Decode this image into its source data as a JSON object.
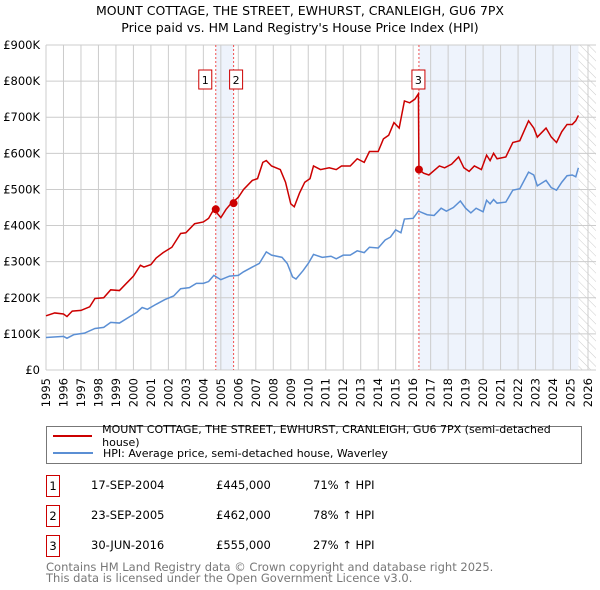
{
  "chart_data": {
    "type": "line",
    "title": "MOUNT COTTAGE, THE STREET, EWHURST, CRANLEIGH, GU6 7PX",
    "subtitle": "Price paid vs. HM Land Registry's House Price Index (HPI)",
    "xlim": [
      1995,
      2026
    ],
    "ylim": [
      0,
      900000
    ],
    "x_ticks": [
      "1995",
      "1996",
      "1997",
      "1998",
      "1999",
      "2000",
      "2001",
      "2002",
      "2003",
      "2004",
      "2005",
      "2006",
      "2007",
      "2008",
      "2009",
      "2010",
      "2011",
      "2012",
      "2013",
      "2014",
      "2015",
      "2016",
      "2017",
      "2018",
      "2019",
      "2020",
      "2021",
      "2022",
      "2023",
      "2024",
      "2025",
      "2026"
    ],
    "y_ticks": [
      {
        "v": 0,
        "l": "£0"
      },
      {
        "v": 100000,
        "l": "£100K"
      },
      {
        "v": 200000,
        "l": "£200K"
      },
      {
        "v": 300000,
        "l": "£300K"
      },
      {
        "v": 400000,
        "l": "£400K"
      },
      {
        "v": 500000,
        "l": "£500K"
      },
      {
        "v": 600000,
        "l": "£600K"
      },
      {
        "v": 700000,
        "l": "£700K"
      },
      {
        "v": 800000,
        "l": "£800K"
      },
      {
        "v": 900000,
        "l": "£900K"
      }
    ],
    "grid": true,
    "series": [
      {
        "name": "MOUNT COTTAGE, THE STREET, EWHURST, CRANLEIGH, GU6 7PX (semi-detached house)",
        "color": "#cc0000",
        "points": [
          [
            1995,
            150
          ],
          [
            1995.5,
            158
          ],
          [
            1996,
            155
          ],
          [
            1996.2,
            148
          ],
          [
            1996.5,
            163
          ],
          [
            1997,
            165
          ],
          [
            1997.5,
            175
          ],
          [
            1997.8,
            198
          ],
          [
            1998.3,
            200
          ],
          [
            1998.7,
            222
          ],
          [
            1999.2,
            220
          ],
          [
            1999.6,
            240
          ],
          [
            2000,
            260
          ],
          [
            2000.4,
            290
          ],
          [
            2000.6,
            285
          ],
          [
            2001,
            292
          ],
          [
            2001.3,
            310
          ],
          [
            2001.7,
            325
          ],
          [
            2002.2,
            340
          ],
          [
            2002.7,
            378
          ],
          [
            2003,
            380
          ],
          [
            2003.5,
            405
          ],
          [
            2004,
            410
          ],
          [
            2004.3,
            420
          ],
          [
            2004.6,
            445
          ],
          [
            2005,
            422
          ],
          [
            2005.3,
            445
          ],
          [
            2005.6,
            462
          ],
          [
            2006,
            478
          ],
          [
            2006.3,
            500
          ],
          [
            2006.8,
            525
          ],
          [
            2007.1,
            530
          ],
          [
            2007.4,
            575
          ],
          [
            2007.6,
            580
          ],
          [
            2007.9,
            565
          ],
          [
            2008.4,
            555
          ],
          [
            2008.7,
            520
          ],
          [
            2009,
            460
          ],
          [
            2009.2,
            452
          ],
          [
            2009.5,
            490
          ],
          [
            2009.8,
            520
          ],
          [
            2010.1,
            530
          ],
          [
            2010.3,
            565
          ],
          [
            2010.7,
            555
          ],
          [
            2011.2,
            560
          ],
          [
            2011.6,
            555
          ],
          [
            2011.9,
            565
          ],
          [
            2012.4,
            565
          ],
          [
            2012.8,
            585
          ],
          [
            2013.2,
            575
          ],
          [
            2013.5,
            605
          ],
          [
            2014,
            605
          ],
          [
            2014.3,
            640
          ],
          [
            2014.6,
            650
          ],
          [
            2014.9,
            685
          ],
          [
            2015.2,
            670
          ],
          [
            2015.5,
            745
          ],
          [
            2015.8,
            740
          ],
          [
            2016.1,
            750
          ],
          [
            2016.3,
            765
          ],
          [
            2016.33,
            555
          ],
          [
            2016.6,
            545
          ],
          [
            2016.9,
            540
          ],
          [
            2017.5,
            565
          ],
          [
            2017.8,
            560
          ],
          [
            2018.2,
            570
          ],
          [
            2018.6,
            590
          ],
          [
            2018.9,
            560
          ],
          [
            2019.2,
            550
          ],
          [
            2019.5,
            565
          ],
          [
            2019.9,
            555
          ],
          [
            2020.2,
            595
          ],
          [
            2020.4,
            580
          ],
          [
            2020.6,
            600
          ],
          [
            2020.8,
            585
          ],
          [
            2021.3,
            590
          ],
          [
            2021.7,
            630
          ],
          [
            2022.1,
            635
          ],
          [
            2022.6,
            690
          ],
          [
            2022.9,
            670
          ],
          [
            2023.1,
            645
          ],
          [
            2023.6,
            670
          ],
          [
            2023.9,
            645
          ],
          [
            2024.2,
            630
          ],
          [
            2024.5,
            660
          ],
          [
            2024.8,
            680
          ],
          [
            2025.1,
            680
          ],
          [
            2025.3,
            690
          ],
          [
            2025.45,
            705
          ]
        ]
      },
      {
        "name": "HPI: Average price, semi-detached house, Waverley",
        "color": "#5b8fd4",
        "points": [
          [
            1995,
            90
          ],
          [
            1996,
            93
          ],
          [
            1996.2,
            88
          ],
          [
            1996.6,
            98
          ],
          [
            1997.2,
            102
          ],
          [
            1997.8,
            115
          ],
          [
            1998.3,
            118
          ],
          [
            1998.7,
            132
          ],
          [
            1999.2,
            130
          ],
          [
            1999.7,
            145
          ],
          [
            2000.2,
            160
          ],
          [
            2000.5,
            173
          ],
          [
            2000.8,
            168
          ],
          [
            2001.3,
            182
          ],
          [
            2001.8,
            195
          ],
          [
            2002.3,
            205
          ],
          [
            2002.7,
            225
          ],
          [
            2003.2,
            228
          ],
          [
            2003.6,
            240
          ],
          [
            2004,
            240
          ],
          [
            2004.3,
            245
          ],
          [
            2004.6,
            262
          ],
          [
            2005,
            250
          ],
          [
            2005.5,
            260
          ],
          [
            2006,
            262
          ],
          [
            2006.3,
            272
          ],
          [
            2006.8,
            285
          ],
          [
            2007.2,
            295
          ],
          [
            2007.6,
            327
          ],
          [
            2007.9,
            318
          ],
          [
            2008.5,
            312
          ],
          [
            2008.8,
            295
          ],
          [
            2009.1,
            258
          ],
          [
            2009.3,
            252
          ],
          [
            2009.7,
            275
          ],
          [
            2010,
            295
          ],
          [
            2010.3,
            320
          ],
          [
            2010.8,
            312
          ],
          [
            2011.3,
            315
          ],
          [
            2011.6,
            308
          ],
          [
            2012,
            318
          ],
          [
            2012.4,
            318
          ],
          [
            2012.8,
            330
          ],
          [
            2013.2,
            325
          ],
          [
            2013.5,
            340
          ],
          [
            2014,
            338
          ],
          [
            2014.4,
            360
          ],
          [
            2014.7,
            368
          ],
          [
            2015,
            388
          ],
          [
            2015.3,
            380
          ],
          [
            2015.5,
            418
          ],
          [
            2016,
            420
          ],
          [
            2016.3,
            440
          ],
          [
            2016.8,
            430
          ],
          [
            2017.2,
            428
          ],
          [
            2017.6,
            448
          ],
          [
            2017.9,
            440
          ],
          [
            2018.3,
            450
          ],
          [
            2018.7,
            468
          ],
          [
            2019,
            448
          ],
          [
            2019.3,
            435
          ],
          [
            2019.6,
            448
          ],
          [
            2020,
            438
          ],
          [
            2020.2,
            470
          ],
          [
            2020.4,
            460
          ],
          [
            2020.6,
            472
          ],
          [
            2020.8,
            462
          ],
          [
            2021.3,
            465
          ],
          [
            2021.7,
            498
          ],
          [
            2022.1,
            502
          ],
          [
            2022.6,
            548
          ],
          [
            2022.9,
            540
          ],
          [
            2023.1,
            510
          ],
          [
            2023.6,
            525
          ],
          [
            2023.9,
            505
          ],
          [
            2024.2,
            498
          ],
          [
            2024.5,
            520
          ],
          [
            2024.8,
            538
          ],
          [
            2025.1,
            540
          ],
          [
            2025.3,
            535
          ],
          [
            2025.45,
            560
          ]
        ]
      }
    ],
    "y_unit": "thousands GBP",
    "sales": [
      {
        "label": "1",
        "x": 2004.71,
        "y": 445
      },
      {
        "label": "2",
        "x": 2005.73,
        "y": 462
      },
      {
        "label": "3",
        "x": 2016.33,
        "y": 555
      }
    ],
    "shaded_ranges": [
      [
        2004.71,
        2005.73
      ],
      [
        2016.33,
        2025.45
      ]
    ],
    "hatched_from": 2025.45
  },
  "legend": {
    "red": "MOUNT COTTAGE, THE STREET, EWHURST, CRANLEIGH, GU6 7PX (semi-detached house)",
    "blue": "HPI: Average price, semi-detached house, Waverley"
  },
  "transactions": [
    {
      "n": "1",
      "date": "17-SEP-2004",
      "price": "£445,000",
      "hpi": "71% ↑ HPI"
    },
    {
      "n": "2",
      "date": "23-SEP-2005",
      "price": "£462,000",
      "hpi": "78% ↑ HPI"
    },
    {
      "n": "3",
      "date": "30-JUN-2016",
      "price": "£555,000",
      "hpi": "27% ↑ HPI"
    }
  ],
  "footer": {
    "line1": "Contains HM Land Registry data © Crown copyright and database right 2025.",
    "line2": "This data is licensed under the Open Government Licence v3.0."
  }
}
